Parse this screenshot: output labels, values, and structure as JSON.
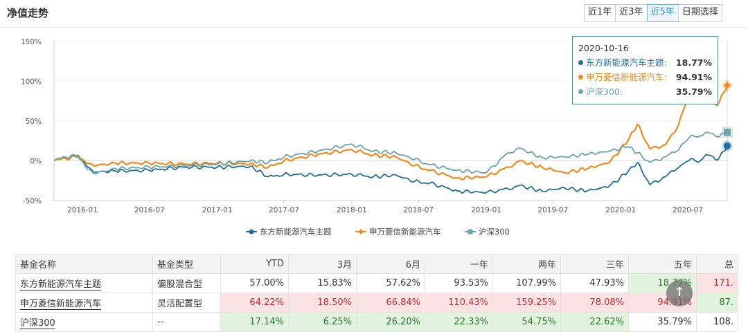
{
  "header": {
    "title": "净值走势",
    "tabs": [
      {
        "label": "近1年",
        "active": false
      },
      {
        "label": "近3年",
        "active": false
      },
      {
        "label": "近5年",
        "active": true
      },
      {
        "label": "日期选择",
        "active": false
      }
    ]
  },
  "tooltip": {
    "date": "2020-10-16",
    "rows": [
      {
        "name": "东方新能源汽车主题:",
        "value": "18.77%",
        "color": "#1f6e99"
      },
      {
        "name": "申万菱信新能源汽车:",
        "value": "94.91%",
        "color": "#f08a1c"
      },
      {
        "name": "沪深300:",
        "value": "35.79%",
        "color": "#6aa3a9"
      }
    ]
  },
  "chart_data": {
    "type": "line",
    "x_range": [
      "2015-10-16",
      "2020-10-16"
    ],
    "x_ticks": [
      "2016-01",
      "2016-07",
      "2017-01",
      "2017-07",
      "2018-01",
      "2018-07",
      "2019-01",
      "2019-07",
      "2020-01",
      "2020-07"
    ],
    "y_ticks": [
      "150%",
      "100%",
      "50%",
      "0%",
      "-50%"
    ],
    "ylim": [
      -50,
      150
    ],
    "legend_position": "bottom",
    "series": [
      {
        "name": "东方新能源汽车主题",
        "color": "#1f6e99",
        "marker": "circle",
        "points": [
          [
            "2015-10-16",
            0
          ],
          [
            "2015-11-15",
            4
          ],
          [
            "2015-12-20",
            7
          ],
          [
            "2016-01-10",
            -5
          ],
          [
            "2016-01-31",
            -14
          ],
          [
            "2016-04-01",
            -13
          ],
          [
            "2016-07-01",
            -12
          ],
          [
            "2016-10-01",
            -8
          ],
          [
            "2017-01-01",
            -8
          ],
          [
            "2017-04-01",
            -7
          ],
          [
            "2017-05-20",
            -20
          ],
          [
            "2017-07-01",
            -17
          ],
          [
            "2017-10-01",
            -18
          ],
          [
            "2018-01-01",
            -17
          ],
          [
            "2018-03-01",
            -20
          ],
          [
            "2018-05-01",
            -18
          ],
          [
            "2018-06-20",
            -26
          ],
          [
            "2018-08-01",
            -28
          ],
          [
            "2018-10-15",
            -38
          ],
          [
            "2019-01-01",
            -40
          ],
          [
            "2019-03-01",
            -35
          ],
          [
            "2019-04-01",
            -31
          ],
          [
            "2019-06-01",
            -38
          ],
          [
            "2019-08-01",
            -34
          ],
          [
            "2019-10-01",
            -38
          ],
          [
            "2019-12-01",
            -32
          ],
          [
            "2020-01-20",
            -14
          ],
          [
            "2020-02-15",
            -2
          ],
          [
            "2020-03-20",
            -30
          ],
          [
            "2020-05-01",
            -20
          ],
          [
            "2020-06-01",
            -10
          ],
          [
            "2020-07-10",
            3
          ],
          [
            "2020-07-30",
            -2
          ],
          [
            "2020-08-20",
            8
          ],
          [
            "2020-09-20",
            1
          ],
          [
            "2020-10-16",
            18.77
          ]
        ]
      },
      {
        "name": "申万菱信新能源汽车",
        "color": "#f08a1c",
        "marker": "diamond",
        "points": [
          [
            "2015-10-16",
            0
          ],
          [
            "2015-11-15",
            3
          ],
          [
            "2015-12-20",
            5
          ],
          [
            "2016-01-10",
            -2
          ],
          [
            "2016-01-31",
            -6
          ],
          [
            "2016-04-01",
            -3
          ],
          [
            "2016-07-01",
            -3
          ],
          [
            "2016-10-01",
            -4
          ],
          [
            "2017-01-01",
            -3
          ],
          [
            "2017-04-01",
            -4
          ],
          [
            "2017-05-20",
            -8
          ],
          [
            "2017-07-01",
            0
          ],
          [
            "2017-10-01",
            8
          ],
          [
            "2018-01-01",
            14
          ],
          [
            "2018-03-01",
            7
          ],
          [
            "2018-05-01",
            5
          ],
          [
            "2018-06-20",
            -6
          ],
          [
            "2018-08-01",
            -12
          ],
          [
            "2018-10-15",
            -22
          ],
          [
            "2019-01-01",
            -20
          ],
          [
            "2019-03-01",
            -8
          ],
          [
            "2019-04-01",
            0
          ],
          [
            "2019-06-01",
            -8
          ],
          [
            "2019-08-01",
            -15
          ],
          [
            "2019-10-01",
            -10
          ],
          [
            "2019-12-01",
            -2
          ],
          [
            "2020-01-20",
            25
          ],
          [
            "2020-02-15",
            46
          ],
          [
            "2020-03-20",
            15
          ],
          [
            "2020-05-01",
            20
          ],
          [
            "2020-06-01",
            40
          ],
          [
            "2020-07-10",
            90
          ],
          [
            "2020-07-30",
            72
          ],
          [
            "2020-08-20",
            75
          ],
          [
            "2020-09-20",
            70
          ],
          [
            "2020-10-16",
            94.91
          ]
        ]
      },
      {
        "name": "沪深300",
        "color": "#6aa3a9",
        "marker": "square",
        "points": [
          [
            "2015-10-16",
            0
          ],
          [
            "2015-11-15",
            5
          ],
          [
            "2015-12-20",
            6
          ],
          [
            "2016-01-10",
            -8
          ],
          [
            "2016-01-31",
            -16
          ],
          [
            "2016-04-01",
            -10
          ],
          [
            "2016-07-01",
            -8
          ],
          [
            "2016-10-01",
            -6
          ],
          [
            "2017-01-01",
            -4
          ],
          [
            "2017-04-01",
            0
          ],
          [
            "2017-05-20",
            -2
          ],
          [
            "2017-07-01",
            5
          ],
          [
            "2017-10-01",
            12
          ],
          [
            "2018-01-01",
            21
          ],
          [
            "2018-03-01",
            12
          ],
          [
            "2018-05-01",
            10
          ],
          [
            "2018-06-20",
            2
          ],
          [
            "2018-08-01",
            -5
          ],
          [
            "2018-10-15",
            -12
          ],
          [
            "2019-01-01",
            -15
          ],
          [
            "2019-03-01",
            10
          ],
          [
            "2019-04-01",
            16
          ],
          [
            "2019-06-01",
            4
          ],
          [
            "2019-08-01",
            5
          ],
          [
            "2019-10-01",
            8
          ],
          [
            "2019-12-01",
            12
          ],
          [
            "2020-01-20",
            18
          ],
          [
            "2020-02-15",
            10
          ],
          [
            "2020-03-20",
            -2
          ],
          [
            "2020-05-01",
            5
          ],
          [
            "2020-06-01",
            12
          ],
          [
            "2020-07-10",
            32
          ],
          [
            "2020-07-30",
            30
          ],
          [
            "2020-08-20",
            36
          ],
          [
            "2020-09-20",
            30
          ],
          [
            "2020-10-16",
            35.79
          ]
        ]
      }
    ]
  },
  "table": {
    "headers": [
      "基金名称",
      "基金类型",
      "YTD",
      "3月",
      "6月",
      "一年",
      "两年",
      "三年",
      "五年",
      "总"
    ],
    "rows": [
      {
        "name": "东方新能源汽车主题",
        "type": "偏股混合型",
        "cells": [
          {
            "v": "57.00%",
            "s": ""
          },
          {
            "v": "15.83%",
            "s": ""
          },
          {
            "v": "57.62%",
            "s": ""
          },
          {
            "v": "93.53%",
            "s": ""
          },
          {
            "v": "107.99%",
            "s": ""
          },
          {
            "v": "47.93%",
            "s": ""
          },
          {
            "v": "18.77%",
            "s": "neg"
          },
          {
            "v": "171.",
            "s": "pos"
          }
        ]
      },
      {
        "name": "申万菱信新能源汽车",
        "type": "灵活配置型",
        "cells": [
          {
            "v": "64.22%",
            "s": "pos"
          },
          {
            "v": "18.50%",
            "s": "pos"
          },
          {
            "v": "66.84%",
            "s": "pos"
          },
          {
            "v": "110.43%",
            "s": "pos"
          },
          {
            "v": "159.25%",
            "s": "pos"
          },
          {
            "v": "78.08%",
            "s": "pos"
          },
          {
            "v": "94.91%",
            "s": "pos"
          },
          {
            "v": "87.",
            "s": "neg"
          }
        ]
      },
      {
        "name": "沪深300",
        "type": "--",
        "cells": [
          {
            "v": "17.14%",
            "s": "neg"
          },
          {
            "v": "6.25%",
            "s": "neg"
          },
          {
            "v": "26.20%",
            "s": "neg"
          },
          {
            "v": "22.33%",
            "s": "neg"
          },
          {
            "v": "54.75%",
            "s": "neg"
          },
          {
            "v": "22.62%",
            "s": "neg"
          },
          {
            "v": "35.79%",
            "s": ""
          },
          {
            "v": "108.",
            "s": ""
          }
        ]
      }
    ]
  },
  "scroll_top_label": "↑"
}
